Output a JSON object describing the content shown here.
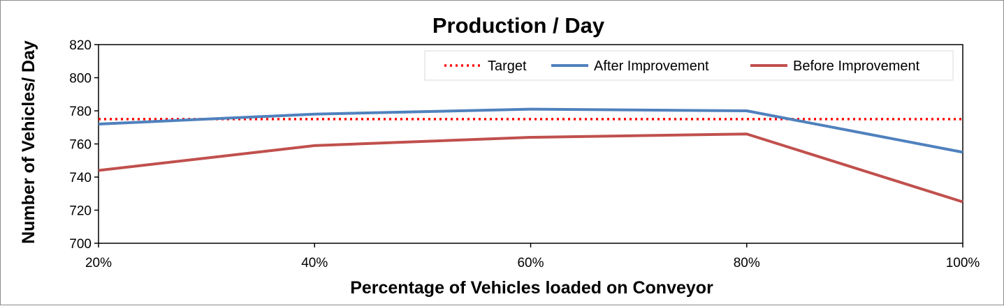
{
  "chart_data": {
    "type": "line",
    "title": "Production / Day",
    "xlabel": "Percentage of Vehicles loaded on Conveyor",
    "ylabel": "Number of Vehicles/ Day",
    "categories": [
      "20%",
      "40%",
      "60%",
      "80%",
      "100%"
    ],
    "ylim": [
      700,
      820
    ],
    "yticks": [
      700,
      720,
      740,
      760,
      780,
      800,
      820
    ],
    "grid": false,
    "legend_position": "top-right",
    "series": [
      {
        "name": "Target",
        "values": [
          775,
          775,
          775,
          775,
          775
        ],
        "color": "#ff0000",
        "style": "dotted"
      },
      {
        "name": "After Improvement",
        "values": [
          772,
          778,
          781,
          780,
          755
        ],
        "color": "#4f81bd",
        "style": "solid"
      },
      {
        "name": "Before Improvement",
        "values": [
          744,
          759,
          764,
          766,
          725
        ],
        "color": "#c0504d",
        "style": "solid"
      }
    ]
  }
}
